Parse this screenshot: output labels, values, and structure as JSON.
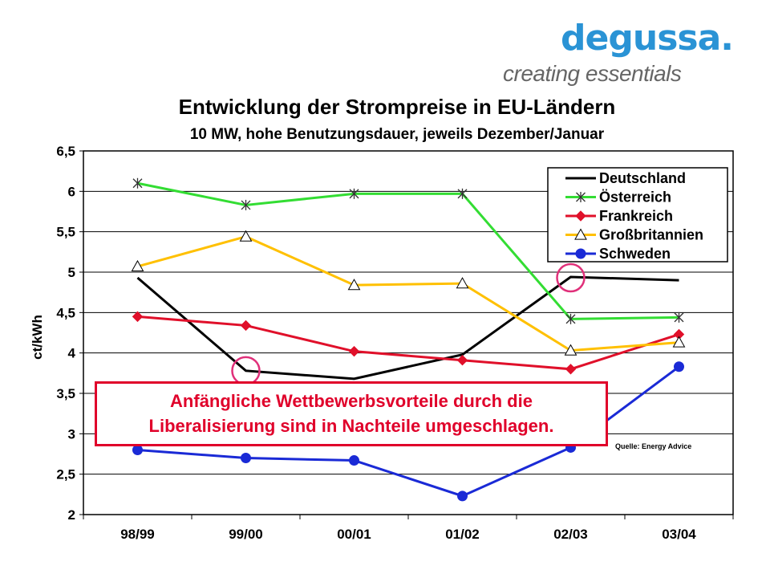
{
  "logo": {
    "word": "degussa.",
    "tagline": "creating essentials"
  },
  "chart_data": {
    "type": "line",
    "title": "Entwicklung der Strompreise in EU-Ländern",
    "subtitle": "10 MW, hohe Benutzungsdauer, jeweils Dezember/Januar",
    "ylabel": "ct/kWh",
    "xlabel": "",
    "categories": [
      "98/99",
      "99/00",
      "00/01",
      "01/02",
      "02/03",
      "03/04"
    ],
    "ylim": [
      2,
      6.5
    ],
    "yticks": [
      "2",
      "2,5",
      "3",
      "3,5",
      "4",
      "4,5",
      "5",
      "5,5",
      "6",
      "6,5"
    ],
    "grid": true,
    "legend_position": "top-right",
    "series": [
      {
        "name": "Deutschland",
        "color": "#000000",
        "marker": "none",
        "values": [
          4.93,
          3.78,
          3.68,
          3.98,
          4.94,
          4.9
        ]
      },
      {
        "name": "Österreich",
        "color": "#33dd33",
        "marker": "star",
        "values": [
          6.1,
          5.83,
          5.97,
          5.97,
          4.42,
          4.44
        ]
      },
      {
        "name": "Frankreich",
        "color": "#e0102a",
        "marker": "diamond",
        "values": [
          4.45,
          4.34,
          4.02,
          3.91,
          3.8,
          4.23
        ]
      },
      {
        "name": "Großbritannien",
        "color": "#ffc000",
        "marker": "triangle",
        "values": [
          5.07,
          5.44,
          4.84,
          4.86,
          4.03,
          4.13
        ]
      },
      {
        "name": "Schweden",
        "color": "#1a2ad6",
        "marker": "circle",
        "values": [
          2.8,
          2.7,
          2.67,
          2.23,
          2.83,
          3.83
        ]
      }
    ],
    "annotations": [
      "Anfängliche Wettbewerbsvorteile durch die Liberalisierung sind in Nachteile umgeschlagen.",
      "Quelle: Energy Advice"
    ]
  },
  "callout": {
    "line1": "Anfängliche Wettbewerbsvorteile durch die",
    "line2": "Liberalisierung sind in Nachteile umgeschlagen."
  },
  "source": "Quelle: Energy Advice",
  "colors": {
    "highlight_circle": "#e0307a",
    "logo": "#2a93d5",
    "callout": "#e0002a"
  }
}
